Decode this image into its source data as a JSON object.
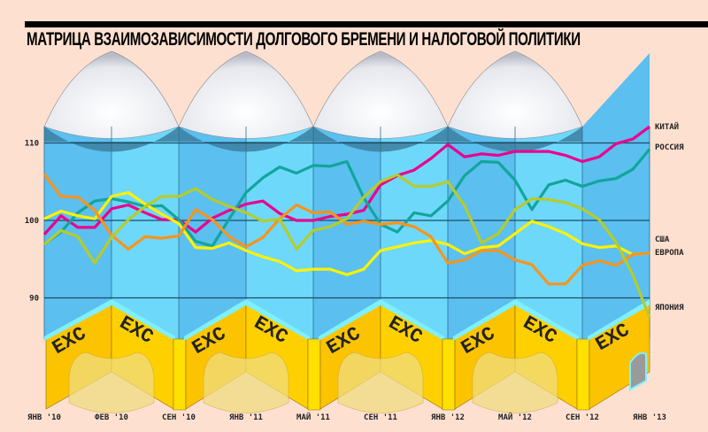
{
  "title": "МАТРИЦА ВЗАИМОЗАВИСИМОСТИ ДОЛГОВОГО БРЕМЕНИ И НАЛОГОВОЙ ПОЛИТИКИ",
  "decoration_text": "EXC",
  "colors": {
    "sky_dark": "#5bbff0",
    "sky_light": "#6ed8fb",
    "wall": "#fcc400",
    "wall_light": "#ffe000",
    "shadow": "#3d7fa0",
    "china": "#ec008c",
    "russia": "#12a59c",
    "europe": "#f7941d",
    "usa": "#fff200",
    "japan": "#b5cc2c"
  },
  "chart_data": {
    "type": "line",
    "title": "МАТРИЦА ВЗАИМОЗАВИСИМОСТИ ДОЛГОВОГО БРЕМЕНИ И НАЛОГОВОЙ ПОЛИТИКИ",
    "xlabel": "",
    "ylabel": "",
    "ylim": [
      83,
      114
    ],
    "yticks": [
      90,
      100,
      110
    ],
    "x_points_monthly": 37,
    "xtick_labels": [
      "ЯНВ '10",
      "ФЕВ '10",
      "СЕН '10",
      "ЯНВ '11",
      "МАЙ '11",
      "СЕН '11",
      "ЯНВ '12",
      "МАЙ '12",
      "СЕН '12",
      "ЯНВ '13"
    ],
    "grid": true,
    "legend": "right (line-end labels)",
    "series": [
      {
        "name": "КИТАЙ",
        "color": "#ec008c",
        "values": [
          98.2,
          100.6,
          99.1,
          99.1,
          101.5,
          102,
          101,
          100.1,
          100.1,
          98.5,
          100.3,
          101.3,
          102.1,
          102.5,
          100.9,
          100,
          100,
          100.5,
          100.8,
          101.3,
          104.6,
          105.8,
          106.5,
          108,
          109.8,
          108.2,
          108.6,
          108.4,
          108.9,
          108.9,
          108.9,
          108.4,
          107.6,
          108.2,
          109.9,
          110.5,
          112.1
        ]
      },
      {
        "name": "РОССИЯ",
        "color": "#12a59c",
        "values": [
          96.9,
          98.5,
          101,
          102.5,
          102.8,
          102.4,
          101.8,
          101.9,
          100.1,
          97.3,
          96.7,
          100.2,
          103.6,
          105.5,
          106.9,
          106.1,
          107.1,
          107,
          107.6,
          102.9,
          99.5,
          98.5,
          101,
          100.6,
          102.5,
          105.8,
          107.6,
          107.5,
          105.2,
          101.4,
          104.6,
          105.2,
          104.4,
          105.1,
          105.4,
          106.6,
          109.2
        ]
      },
      {
        "name": "США",
        "color": "#fff200",
        "values": [
          100.2,
          101.2,
          100.6,
          100.2,
          103.1,
          103.6,
          102.1,
          100.8,
          99.6,
          96.5,
          96.4,
          97.1,
          96.1,
          95.3,
          94.7,
          93.5,
          93.7,
          93.7,
          93,
          93.7,
          96.1,
          96.6,
          97.1,
          97.4,
          96.9,
          95.7,
          96.5,
          96.7,
          98.3,
          99.9,
          99.2,
          98.3,
          97,
          96.5,
          96.7,
          95.6,
          95.8
        ]
      },
      {
        "name": "ЕВРОПА",
        "color": "#f7941d",
        "values": [
          106,
          103.1,
          103,
          101.3,
          98.1,
          96.3,
          97.9,
          97.7,
          98,
          101.4,
          100.1,
          97.9,
          96.6,
          97.8,
          100.2,
          102,
          101,
          101.1,
          99.5,
          99.9,
          99.5,
          99.7,
          99.2,
          97.9,
          94.5,
          94.9,
          96.1,
          96.1,
          94.9,
          94.3,
          91.8,
          91.8,
          94.2,
          94.8,
          94.2,
          95.6,
          95.8
        ]
      },
      {
        "name": "ЯПОНИЯ",
        "color": "#b5cc2c",
        "values": [
          96.9,
          98.7,
          97.9,
          94.5,
          97.8,
          100.1,
          101.8,
          103.1,
          103.1,
          104.1,
          102.7,
          101.8,
          101,
          99.9,
          100.2,
          96.3,
          98.7,
          99.2,
          100.2,
          103,
          105,
          105.9,
          104.4,
          104.4,
          105,
          101.9,
          97.1,
          98.3,
          101.4,
          102.8,
          102.7,
          102.3,
          101.5,
          100.1,
          97.2,
          93,
          87.4
        ]
      }
    ]
  }
}
